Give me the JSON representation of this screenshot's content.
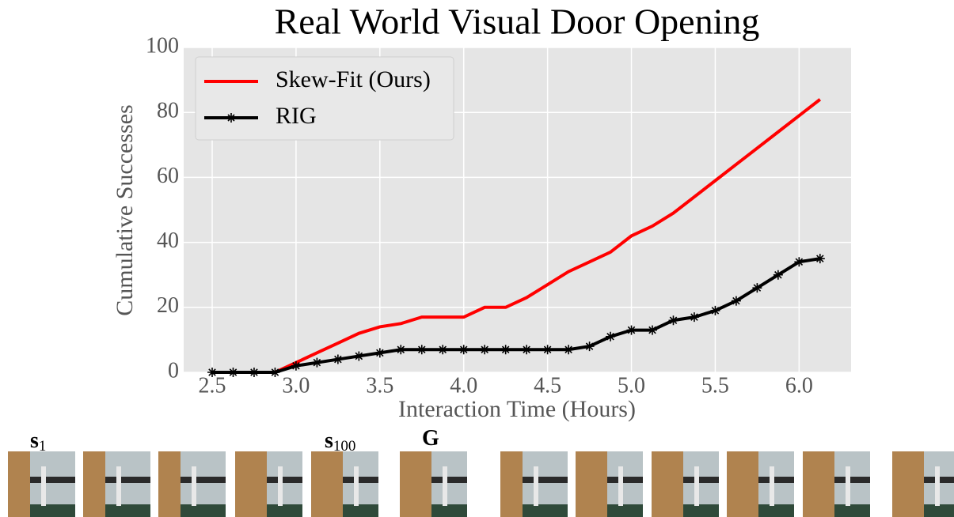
{
  "chart_data": {
    "type": "line",
    "title": "Real World Visual Door Opening",
    "x_label": "Interaction Time (Hours)",
    "y_label": "Cumulative Successes",
    "x": [
      2.5,
      2.625,
      2.75,
      2.875,
      3.0,
      3.125,
      3.25,
      3.375,
      3.5,
      3.625,
      3.75,
      3.875,
      4.0,
      4.125,
      4.25,
      4.375,
      4.5,
      4.625,
      4.75,
      4.875,
      5.0,
      5.125,
      5.25,
      5.375,
      5.5,
      5.625,
      5.75,
      5.875,
      6.0,
      6.125
    ],
    "series": [
      {
        "name": "Skew-Fit (Ours)",
        "color": "#ff0000",
        "marker": "none",
        "values": [
          0,
          0,
          0,
          0,
          3,
          6,
          9,
          12,
          14,
          15,
          17,
          17,
          17,
          20,
          20,
          23,
          27,
          31,
          34,
          37,
          42,
          45,
          49,
          54,
          59,
          64,
          69,
          74,
          79,
          84
        ]
      },
      {
        "name": "RIG",
        "color": "#000000",
        "marker": "asterisk",
        "values": [
          0,
          0,
          0,
          0,
          2,
          3,
          4,
          5,
          6,
          7,
          7,
          7,
          7,
          7,
          7,
          7,
          7,
          7,
          8,
          11,
          13,
          13,
          16,
          17,
          19,
          22,
          26,
          30,
          34,
          35
        ]
      }
    ],
    "xlim": [
      2.33,
      6.31
    ],
    "ylim": [
      0,
      100
    ],
    "xticks": [
      2.5,
      {
        "value": 3.0,
        "label": "3.0"
      },
      3.5,
      {
        "value": 4.0,
        "label": "4.0"
      },
      4.5,
      {
        "value": 5.0,
        "label": "5.0"
      },
      5.5,
      {
        "value": 6.0,
        "label": "6.0"
      }
    ],
    "yticks": [
      0,
      20,
      40,
      60,
      80,
      100
    ],
    "grid": true,
    "legend": "upper left"
  },
  "frame_labels": [
    {
      "base": "s",
      "sub": "1"
    },
    {
      "base": "s",
      "sub": "100"
    },
    {
      "base": "G"
    }
  ]
}
